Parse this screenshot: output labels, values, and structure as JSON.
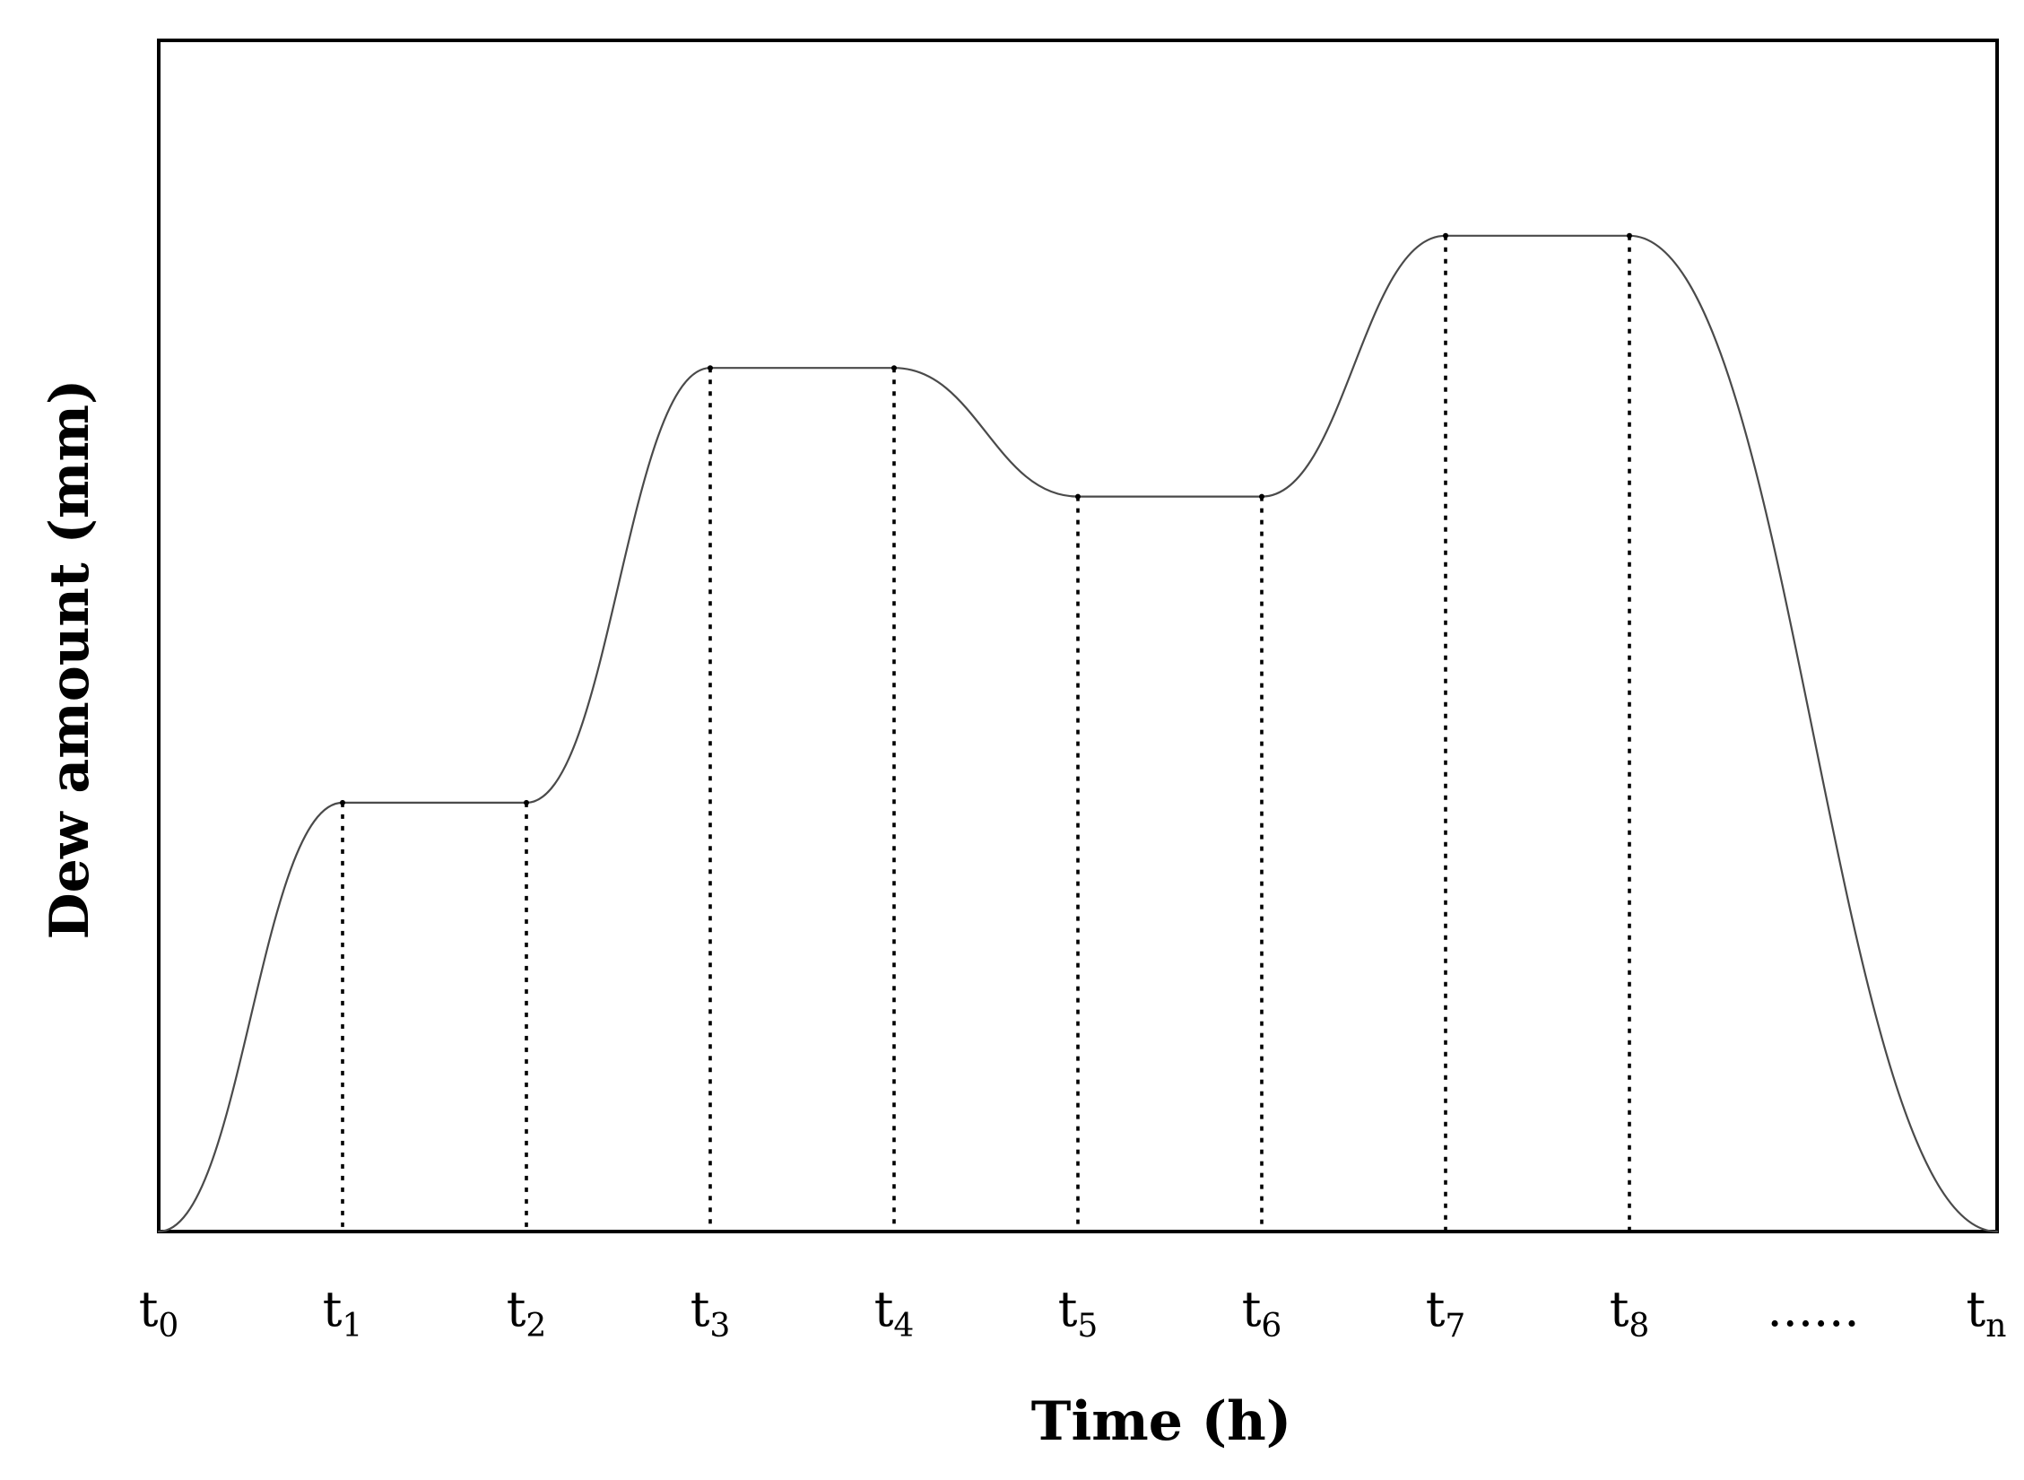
{
  "chart_data": {
    "type": "line",
    "title": "",
    "xlabel": "Time (h)",
    "ylabel": "Dew amount (mm)",
    "grid": false,
    "legend": "none",
    "ylim": [
      0,
      1
    ],
    "x_ticks": [
      {
        "base": "t",
        "sub": "0"
      },
      {
        "base": "t",
        "sub": "1"
      },
      {
        "base": "t",
        "sub": "2"
      },
      {
        "base": "t",
        "sub": "3"
      },
      {
        "base": "t",
        "sub": "4"
      },
      {
        "base": "t",
        "sub": "5"
      },
      {
        "base": "t",
        "sub": "6"
      },
      {
        "base": "t",
        "sub": "7"
      },
      {
        "base": "t",
        "sub": "8"
      },
      {
        "base": "......",
        "sub": ""
      },
      {
        "base": "t",
        "sub": "n"
      }
    ],
    "x": [
      0,
      0.1,
      0.2,
      0.3,
      0.4,
      0.5,
      0.6,
      0.7,
      0.8,
      1.0
    ],
    "series": [
      {
        "values": [
          0,
          0.36,
          0.36,
          0.725,
          0.725,
          0.617,
          0.617,
          0.836,
          0.836,
          0
        ],
        "color": "#4a4a4a"
      }
    ],
    "dotted_drop_lines_at": [
      0.1,
      0.2,
      0.3,
      0.4,
      0.5,
      0.6,
      0.7,
      0.8
    ],
    "colors": {
      "line": "#4a4a4a",
      "frame": "#000000",
      "background": "#ffffff"
    }
  }
}
